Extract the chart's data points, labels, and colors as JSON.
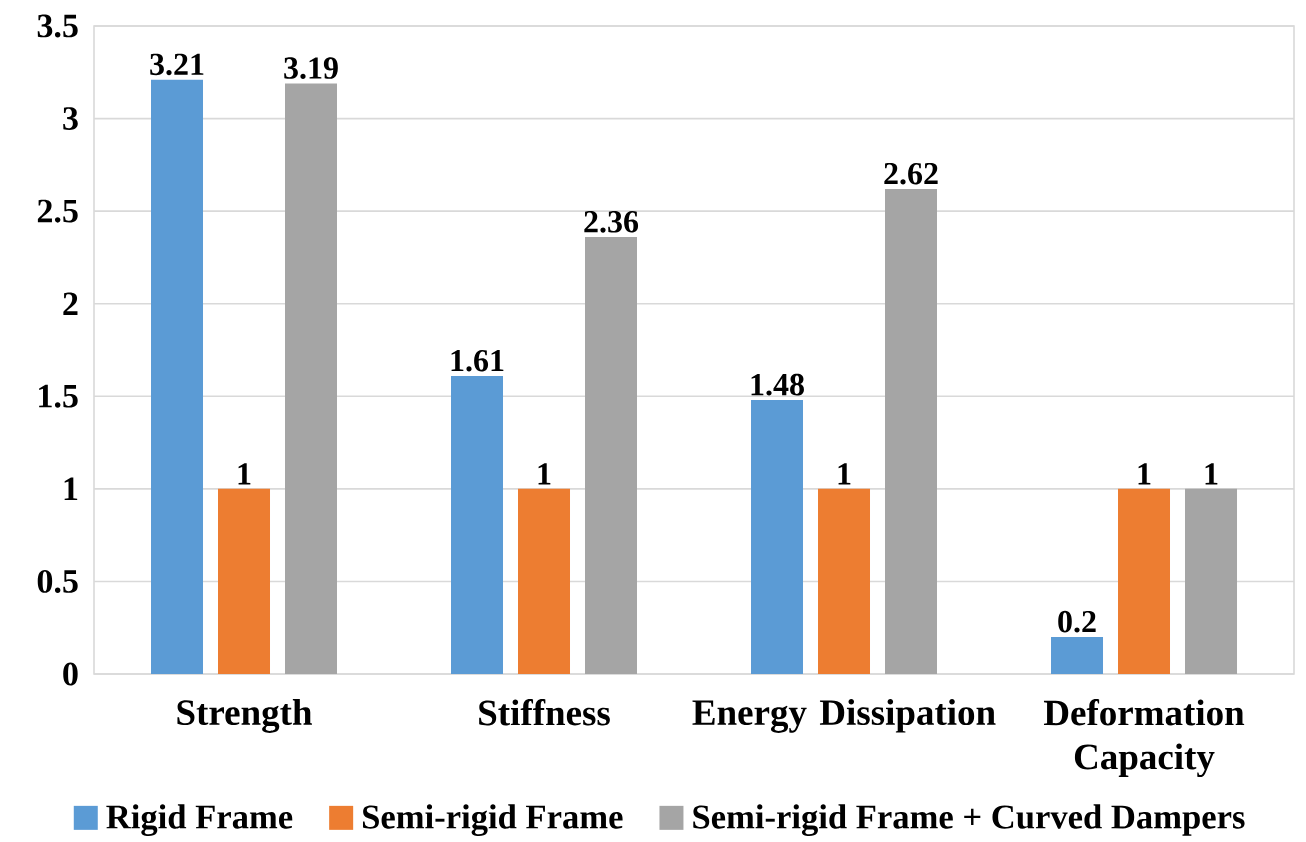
{
  "chart_data": {
    "type": "bar",
    "categories": [
      "Strength",
      "Stiffness",
      "Energy Dissipation",
      "Deformation Capacity"
    ],
    "series": [
      {
        "name": "Rigid Frame",
        "color": "#5b9bd5",
        "values": [
          3.21,
          1.61,
          1.48,
          0.2
        ]
      },
      {
        "name": "Semi-rigid Frame",
        "color": "#ed7d31",
        "values": [
          1,
          1,
          1,
          1
        ]
      },
      {
        "name": "Semi-rigid Frame + Curved Dampers",
        "color": "#a5a5a5",
        "values": [
          3.19,
          2.36,
          2.62,
          1
        ]
      }
    ],
    "ylim": [
      0,
      3.5
    ],
    "yticks": [
      0,
      0.5,
      1,
      1.5,
      2,
      2.5,
      3,
      3.5
    ],
    "grid": "y",
    "legend": "bottom",
    "data_labels": true
  }
}
